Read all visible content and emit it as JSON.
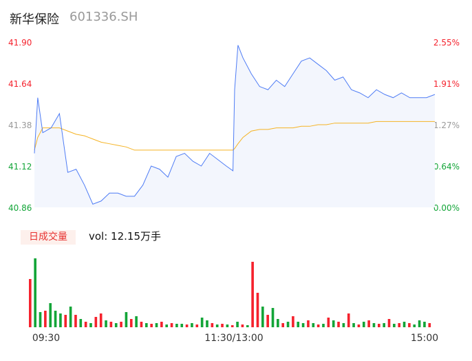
{
  "header": {
    "name": "新华保险",
    "code": "601336.SH"
  },
  "volume_panel": {
    "tag": "日成交量",
    "label": "vol: 12.15万手"
  },
  "colors": {
    "up": "#f5222d",
    "down": "#13a538",
    "price": "#4e7cf5",
    "avg": "#f5b323"
  },
  "chart_data": {
    "type": "line",
    "ylim": [
      40.86,
      41.9
    ],
    "pre_close": 40.86,
    "y_ticks_left": [
      "41.90",
      "41.64",
      "41.38",
      "41.12",
      "40.86"
    ],
    "y_ticks_right": [
      "2.55%",
      "1.91%",
      "1.27%",
      "0.64%",
      "0.00%"
    ],
    "x_ticks": [
      "09:30",
      "11:30/13:00",
      "15:00"
    ],
    "minutes": [
      0,
      2,
      5,
      10,
      15,
      20,
      25,
      30,
      35,
      40,
      45,
      50,
      55,
      60,
      65,
      70,
      75,
      80,
      85,
      90,
      95,
      100,
      105,
      110,
      115,
      119,
      120,
      122,
      125,
      130,
      135,
      140,
      145,
      150,
      155,
      160,
      165,
      170,
      175,
      180,
      185,
      190,
      195,
      200,
      205,
      210,
      215,
      220,
      225,
      230,
      235,
      240
    ],
    "price": [
      41.2,
      41.55,
      41.33,
      41.36,
      41.45,
      41.08,
      41.1,
      41.0,
      40.88,
      40.9,
      40.95,
      40.95,
      40.93,
      40.93,
      41.0,
      41.12,
      41.1,
      41.05,
      41.18,
      41.2,
      41.15,
      41.12,
      41.2,
      41.16,
      41.12,
      41.09,
      41.6,
      41.88,
      41.8,
      41.7,
      41.62,
      41.6,
      41.66,
      41.62,
      41.7,
      41.78,
      41.8,
      41.76,
      41.72,
      41.66,
      41.68,
      41.6,
      41.58,
      41.55,
      41.6,
      41.57,
      41.55,
      41.58,
      41.55,
      41.55,
      41.55,
      41.57
    ],
    "avg": [
      41.22,
      41.3,
      41.36,
      41.36,
      41.36,
      41.34,
      41.32,
      41.31,
      41.29,
      41.27,
      41.26,
      41.25,
      41.24,
      41.22,
      41.22,
      41.22,
      41.22,
      41.22,
      41.22,
      41.22,
      41.22,
      41.22,
      41.22,
      41.22,
      41.22,
      41.22,
      41.23,
      41.26,
      41.3,
      41.34,
      41.35,
      41.35,
      41.36,
      41.36,
      41.36,
      41.37,
      41.37,
      41.38,
      41.38,
      41.39,
      41.39,
      41.39,
      41.39,
      41.39,
      41.4,
      41.4,
      41.4,
      41.4,
      41.4,
      41.4,
      41.4,
      41.4
    ],
    "volume": [
      70,
      100,
      22,
      24,
      35,
      24,
      20,
      18,
      30,
      18,
      12,
      8,
      6,
      15,
      20,
      10,
      8,
      6,
      8,
      22,
      12,
      16,
      8,
      6,
      5,
      6,
      8,
      4,
      6,
      5,
      5,
      4,
      6,
      4,
      14,
      10,
      6,
      4,
      5,
      4,
      3,
      8,
      4,
      3,
      95,
      50,
      30,
      18,
      28,
      12,
      6,
      8,
      16,
      8,
      6,
      10,
      6,
      4,
      5,
      14,
      10,
      8,
      6,
      20,
      6,
      4,
      8,
      10,
      6,
      5,
      6,
      12,
      5,
      6,
      8,
      6,
      4,
      10,
      8,
      6
    ],
    "volume_dir": [
      "u",
      "d",
      "d",
      "u",
      "d",
      "d",
      "d",
      "u",
      "d",
      "u",
      "d",
      "u",
      "d",
      "u",
      "u",
      "d",
      "u",
      "d",
      "u",
      "d",
      "u",
      "d",
      "u",
      "d",
      "u",
      "d",
      "u",
      "d",
      "u",
      "d",
      "d",
      "u",
      "d",
      "u",
      "d",
      "d",
      "u",
      "d",
      "u",
      "d",
      "u",
      "d",
      "u",
      "d",
      "u",
      "u",
      "d",
      "u",
      "d",
      "d",
      "u",
      "d",
      "u",
      "d",
      "d",
      "u",
      "d",
      "u",
      "d",
      "u",
      "d",
      "u",
      "d",
      "u",
      "d",
      "u",
      "d",
      "u",
      "d",
      "u",
      "d",
      "u",
      "d",
      "u",
      "d",
      "u",
      "d",
      "d",
      "d",
      "u"
    ]
  }
}
